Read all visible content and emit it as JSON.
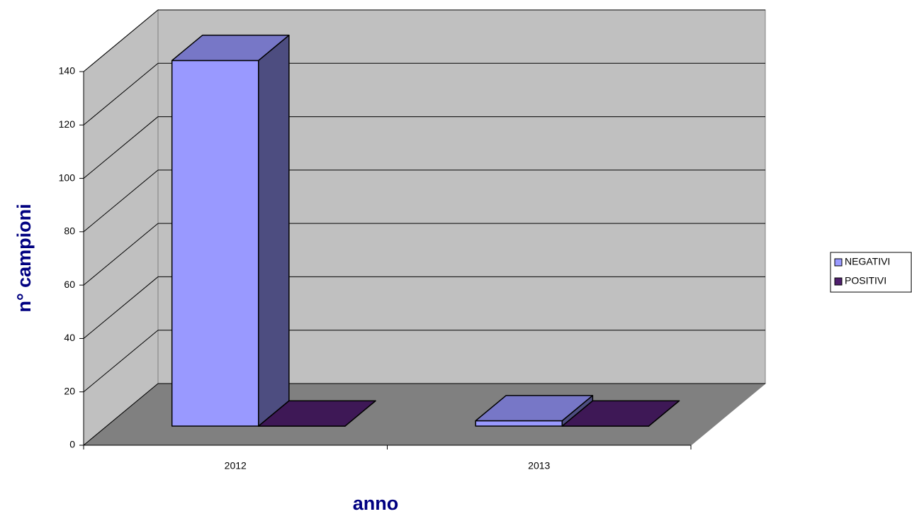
{
  "chart_data": {
    "type": "bar",
    "x_label": "anno",
    "y_label": "n° campioni",
    "categories": [
      "2012",
      "2013"
    ],
    "series": [
      {
        "name": "NEGATIVI",
        "color": "#9999ff",
        "values": [
          137,
          2
        ]
      },
      {
        "name": "POSITIVI",
        "color": "#4f1f6e",
        "values": [
          0,
          0
        ]
      }
    ],
    "ylim": [
      0,
      140
    ],
    "yticks": [
      0,
      20,
      40,
      60,
      80,
      100,
      120,
      140
    ],
    "grid": true,
    "legend": "right"
  }
}
